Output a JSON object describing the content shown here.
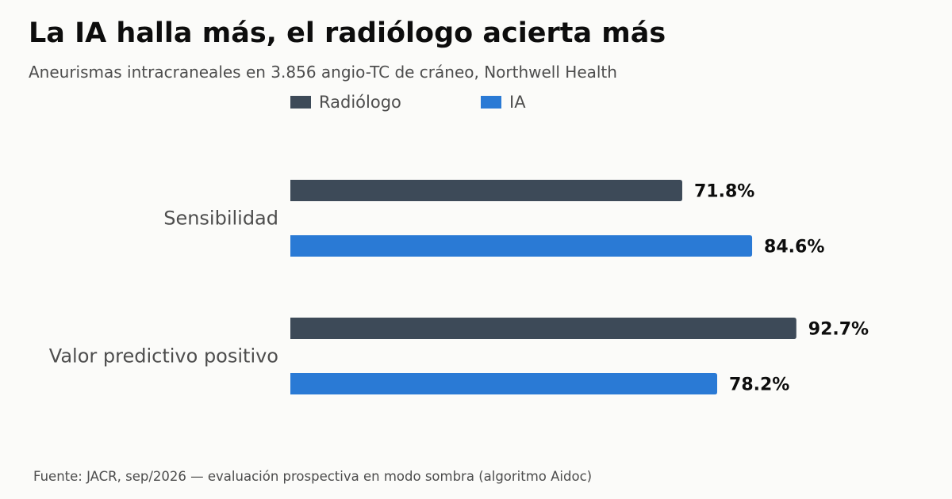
{
  "title": "La IA halla más, el radiólogo acierta más",
  "subtitle": "Aneurismas intracraneales en 3.856 angio-TC de cráneo, Northwell Health",
  "source": "Fuente: JACR, sep/2026 — evaluación prospectiva en modo sombra (algoritmo Aidoc)",
  "chart_data": {
    "type": "bar",
    "orientation": "horizontal",
    "categories": [
      "Sensibilidad",
      "Valor predictivo positivo"
    ],
    "series": [
      {
        "name": "Radiólogo",
        "color": "#3d4a58",
        "values": [
          71.8,
          92.7
        ],
        "labels": [
          "71.8%",
          "92.7%"
        ]
      },
      {
        "name": "IA",
        "color": "#2a7ad5",
        "values": [
          84.6,
          78.2
        ],
        "labels": [
          "84.6%",
          "78.2%"
        ]
      }
    ],
    "xlim": [
      0,
      100
    ],
    "value_suffix": "%",
    "legend_position": "top",
    "grid": false,
    "xlabel": "",
    "ylabel": ""
  }
}
